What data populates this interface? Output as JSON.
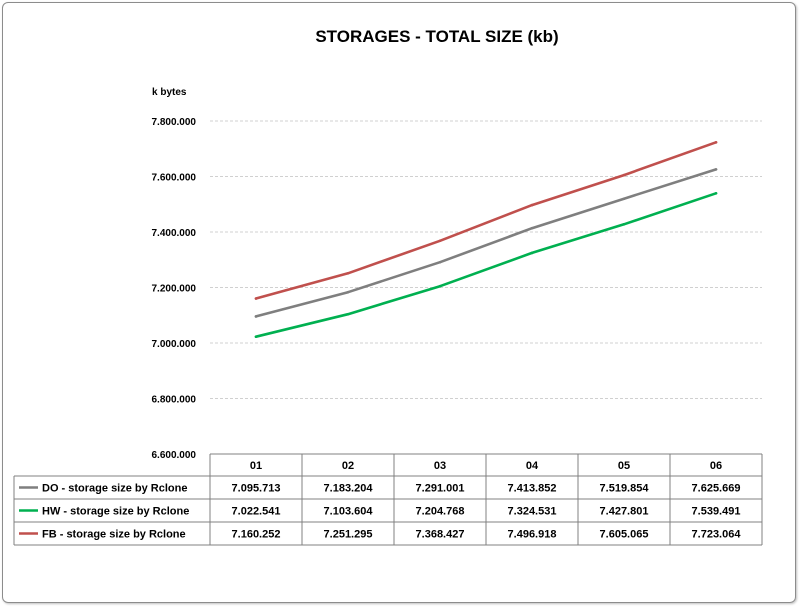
{
  "chart_data": {
    "type": "line",
    "title": "STORAGES - TOTAL SIZE (kb)",
    "ylabel": "k bytes",
    "xlabel": "",
    "ylim": [
      6600000,
      7800000
    ],
    "yticks": [
      6600000,
      6800000,
      7000000,
      7200000,
      7400000,
      7600000,
      7800000
    ],
    "ytick_labels": [
      "6.600.000",
      "6.800.000",
      "7.000.000",
      "7.200.000",
      "7.400.000",
      "7.600.000",
      "7.800.000"
    ],
    "categories": [
      "01",
      "02",
      "03",
      "04",
      "05",
      "06"
    ],
    "grid": true,
    "legend": "data-table",
    "series": [
      {
        "name": "DO - storage size by Rclone",
        "color": "#7f7f7f",
        "values": [
          7095713,
          7183204,
          7291001,
          7413852,
          7519854,
          7625669
        ],
        "labels": [
          "7.095.713",
          "7.183.204",
          "7.291.001",
          "7.413.852",
          "7.519.854",
          "7.625.669"
        ]
      },
      {
        "name": "HW - storage size by Rclone",
        "color": "#00b050",
        "values": [
          7022541,
          7103604,
          7204768,
          7324531,
          7427801,
          7539491
        ],
        "labels": [
          "7.022.541",
          "7.103.604",
          "7.204.768",
          "7.324.531",
          "7.427.801",
          "7.539.491"
        ]
      },
      {
        "name": "FB - storage size by Rclone",
        "color": "#c0504d",
        "values": [
          7160252,
          7251295,
          7368427,
          7496918,
          7605065,
          7723064
        ],
        "labels": [
          "7.160.252",
          "7.251.295",
          "7.368.427",
          "7.496.918",
          "7.605.065",
          "7.723.064"
        ]
      }
    ]
  }
}
